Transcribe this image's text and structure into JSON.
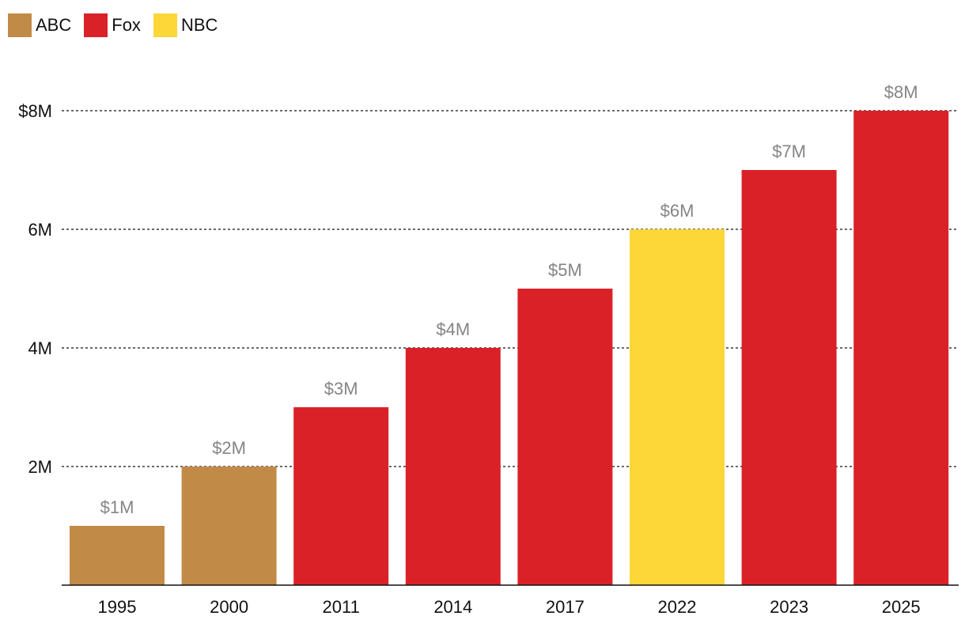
{
  "chart_data": {
    "type": "bar",
    "categories": [
      "1995",
      "2000",
      "2011",
      "2014",
      "2017",
      "2022",
      "2023",
      "2025"
    ],
    "values": [
      1,
      2,
      3,
      4,
      5,
      6,
      7,
      8
    ],
    "networks": [
      "ABC",
      "ABC",
      "Fox",
      "Fox",
      "Fox",
      "NBC",
      "Fox",
      "Fox"
    ],
    "value_labels": [
      "$1M",
      "$2M",
      "$3M",
      "$4M",
      "$5M",
      "$6M",
      "$7M",
      "$8M"
    ],
    "y_ticks": [
      {
        "value": 2,
        "label": "2M"
      },
      {
        "value": 4,
        "label": "4M"
      },
      {
        "value": 6,
        "label": "6M"
      },
      {
        "value": 8,
        "label": "$8M"
      }
    ],
    "ylim": [
      0,
      8
    ],
    "grid": "dashed horizontal",
    "legend": {
      "placement": "top-left",
      "entries": [
        {
          "name": "ABC",
          "color": "#C28A47"
        },
        {
          "name": "Fox",
          "color": "#DA2128"
        },
        {
          "name": "NBC",
          "color": "#FDD637"
        }
      ]
    },
    "title": "",
    "xlabel": "",
    "ylabel": ""
  }
}
